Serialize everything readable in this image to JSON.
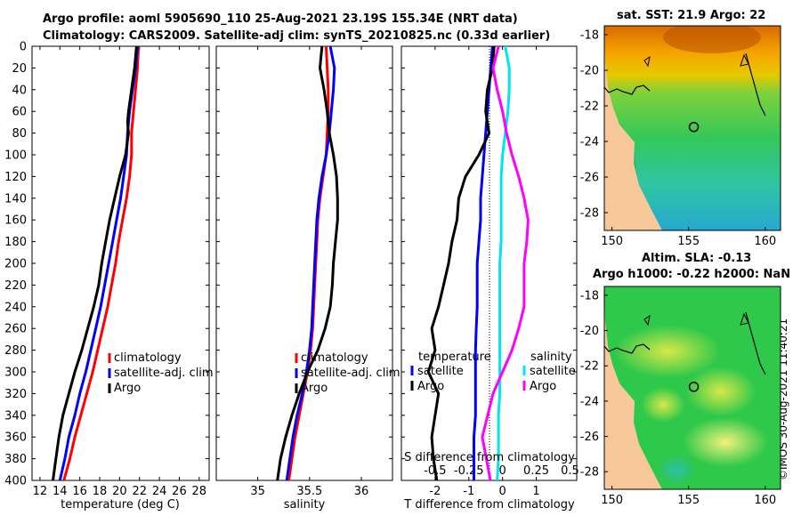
{
  "header": {
    "line1": "Argo profile: aoml 5905690_110 25-Aug-2021 23.19S 155.34E (NRT data)",
    "line2": "Climatology: CARS2009. Satellite-adj clim: synTS_20210825.nc (0.33d earlier)"
  },
  "watermark": "©IMOS 30-Aug-2021 11:40:21",
  "colors": {
    "climatology": "#ff0000",
    "satellite": "#0000ff",
    "argo": "#000000",
    "t_satellite": "#0000ff",
    "s_satellite": "#00e5ee",
    "s_argo": "#ff00ff"
  },
  "chart_data": [
    {
      "type": "line",
      "id": "temperature",
      "xlabel": "temperature (deg C)",
      "ylabel": "",
      "xlim": [
        11.2,
        29
      ],
      "ylim": [
        400,
        0
      ],
      "xticks": [
        12,
        14,
        16,
        18,
        20,
        22,
        24,
        26,
        28
      ],
      "yticks": [
        0,
        20,
        40,
        60,
        80,
        100,
        120,
        140,
        160,
        180,
        200,
        220,
        240,
        260,
        280,
        300,
        320,
        340,
        360,
        380,
        400
      ],
      "legend": {
        "placement": "lower-right",
        "entries": [
          "climatology",
          "satellite-adj. clim",
          "Argo"
        ]
      },
      "series": [
        {
          "name": "climatology",
          "depth": [
            0,
            20,
            40,
            60,
            80,
            100,
            120,
            140,
            160,
            180,
            200,
            220,
            240,
            260,
            280,
            300,
            320,
            340,
            360,
            380,
            400
          ],
          "values": [
            21.9,
            21.8,
            21.6,
            21.4,
            21.2,
            21.2,
            21.0,
            20.7,
            20.3,
            19.9,
            19.6,
            19.2,
            18.8,
            18.3,
            17.8,
            17.3,
            16.7,
            16.1,
            15.5,
            15.0,
            14.4
          ]
        },
        {
          "name": "satellite-adj. clim",
          "depth": [
            0,
            20,
            40,
            60,
            80,
            100,
            120,
            140,
            160,
            180,
            200,
            220,
            240,
            260,
            280,
            300,
            320,
            340,
            360,
            380,
            400
          ],
          "values": [
            21.8,
            21.6,
            21.3,
            21.0,
            20.8,
            20.7,
            20.4,
            20.1,
            19.7,
            19.3,
            18.9,
            18.5,
            18.1,
            17.6,
            17.1,
            16.6,
            16.0,
            15.5,
            14.9,
            14.5,
            14.0
          ]
        },
        {
          "name": "Argo",
          "depth": [
            0,
            20,
            40,
            60,
            70,
            80,
            100,
            120,
            140,
            160,
            180,
            200,
            220,
            240,
            260,
            280,
            300,
            320,
            340,
            360,
            380,
            400
          ],
          "values": [
            21.7,
            21.5,
            21.2,
            20.9,
            20.8,
            20.9,
            20.6,
            20.0,
            19.5,
            19.0,
            18.6,
            18.2,
            17.9,
            17.4,
            16.8,
            16.2,
            15.5,
            14.9,
            14.3,
            13.9,
            13.6,
            13.3
          ]
        }
      ]
    },
    {
      "type": "line",
      "id": "salinity",
      "xlabel": "salinity",
      "ylabel": "",
      "xlim": [
        34.6,
        36.3
      ],
      "ylim": [
        400,
        0
      ],
      "xticks": [
        35,
        35.5,
        36
      ],
      "legend": {
        "placement": "lower-right",
        "entries": [
          "climatology",
          "satellite-adj. clim",
          "Argo"
        ]
      },
      "series": [
        {
          "name": "climatology",
          "depth": [
            0,
            20,
            40,
            60,
            80,
            100,
            120,
            140,
            160,
            180,
            200,
            220,
            240,
            260,
            280,
            300,
            320,
            340,
            360,
            380,
            400
          ],
          "values": [
            35.66,
            35.67,
            35.68,
            35.68,
            35.67,
            35.66,
            35.63,
            35.6,
            35.58,
            35.57,
            35.56,
            35.55,
            35.54,
            35.53,
            35.51,
            35.48,
            35.44,
            35.4,
            35.36,
            35.33,
            35.3
          ]
        },
        {
          "name": "satellite-adj. clim",
          "depth": [
            0,
            20,
            40,
            60,
            80,
            100,
            120,
            140,
            160,
            180,
            200,
            220,
            240,
            260,
            280,
            300,
            320,
            340,
            360,
            380,
            400
          ],
          "values": [
            35.7,
            35.74,
            35.73,
            35.71,
            35.69,
            35.66,
            35.62,
            35.59,
            35.57,
            35.56,
            35.55,
            35.54,
            35.53,
            35.52,
            35.5,
            35.47,
            35.43,
            35.38,
            35.34,
            35.31,
            35.28
          ]
        },
        {
          "name": "Argo",
          "depth": [
            0,
            20,
            40,
            60,
            80,
            100,
            120,
            140,
            160,
            180,
            200,
            220,
            240,
            260,
            280,
            300,
            320,
            340,
            360,
            380,
            400
          ],
          "values": [
            35.62,
            35.6,
            35.64,
            35.67,
            35.69,
            35.73,
            35.76,
            35.77,
            35.77,
            35.75,
            35.73,
            35.72,
            35.7,
            35.65,
            35.58,
            35.48,
            35.4,
            35.33,
            35.27,
            35.22,
            35.19
          ]
        }
      ]
    },
    {
      "type": "line",
      "id": "difference",
      "xlabel": "T difference from climatology",
      "x2label": "S difference from climatology",
      "xlim": [
        -3,
        2.2
      ],
      "ylim": [
        400,
        0
      ],
      "xticks": [
        -2,
        -1,
        0,
        1
      ],
      "x2lim": [
        -0.75,
        0.55
      ],
      "x2ticks": [
        -0.5,
        -0.25,
        0,
        0.25,
        0.5
      ],
      "legend": {
        "placement": "lower",
        "group_titles": [
          "temperature",
          "salinity"
        ],
        "entries": [
          "satellite",
          "Argo",
          "satellite",
          "Argo"
        ]
      },
      "series": [
        {
          "name": "temperature satellite",
          "axis": "T",
          "depth": [
            0,
            20,
            40,
            60,
            80,
            100,
            120,
            140,
            160,
            180,
            200,
            220,
            240,
            260,
            280,
            300,
            320,
            340,
            360,
            380,
            400
          ],
          "values": [
            -0.3,
            -0.35,
            -0.4,
            -0.45,
            -0.5,
            -0.55,
            -0.6,
            -0.65,
            -0.65,
            -0.7,
            -0.75,
            -0.75,
            -0.75,
            -0.78,
            -0.8,
            -0.8,
            -0.8,
            -0.8,
            -0.85,
            -0.85,
            -0.85
          ]
        },
        {
          "name": "temperature Argo",
          "axis": "T",
          "depth": [
            0,
            20,
            40,
            60,
            80,
            100,
            120,
            140,
            160,
            180,
            200,
            220,
            240,
            260,
            280,
            300,
            320,
            340,
            360,
            380,
            400
          ],
          "values": [
            -0.25,
            -0.3,
            -0.45,
            -0.5,
            -0.4,
            -0.7,
            -1.1,
            -1.3,
            -1.35,
            -1.5,
            -1.6,
            -1.75,
            -1.9,
            -2.1,
            -2.0,
            -2.2,
            -1.9,
            -2.0,
            -2.1,
            -2.05,
            -1.95
          ]
        },
        {
          "name": "salinity satellite",
          "axis": "S",
          "depth": [
            0,
            20,
            40,
            60,
            80,
            100,
            120,
            140,
            160,
            180,
            200,
            220,
            240,
            260,
            280,
            300,
            320,
            340,
            360,
            380,
            400
          ],
          "values": [
            0.02,
            0.05,
            0.05,
            0.04,
            0.02,
            0.0,
            -0.01,
            -0.01,
            -0.01,
            -0.01,
            -0.02,
            -0.02,
            -0.02,
            -0.02,
            -0.02,
            -0.02,
            -0.02,
            -0.03,
            -0.03,
            -0.03,
            -0.04
          ]
        },
        {
          "name": "salinity Argo",
          "axis": "S",
          "depth": [
            0,
            20,
            40,
            60,
            80,
            100,
            120,
            140,
            160,
            180,
            200,
            220,
            240,
            260,
            280,
            300,
            320,
            340,
            360,
            380,
            400
          ],
          "values": [
            -0.03,
            -0.07,
            -0.04,
            0.0,
            0.03,
            0.07,
            0.12,
            0.16,
            0.19,
            0.18,
            0.16,
            0.16,
            0.16,
            0.12,
            0.07,
            0.0,
            -0.07,
            -0.11,
            -0.15,
            -0.12,
            -0.09
          ]
        }
      ]
    },
    {
      "type": "heatmap",
      "id": "sst_map",
      "title": "sat. SST: 21.9 Argo: 22",
      "xticks": [
        150,
        155,
        160
      ],
      "yticks": [
        -18,
        -20,
        -22,
        -24,
        -26,
        -28
      ],
      "xlim": [
        149.5,
        161
      ],
      "ylim": [
        -29,
        -17.5
      ],
      "argo_position": {
        "lon": 155.34,
        "lat": -23.19
      }
    },
    {
      "type": "heatmap",
      "id": "sla_map",
      "title_line1": "Altim. SLA: -0.13",
      "title_line2": "Argo h1000: -0.22 h2000: NaN",
      "xticks": [
        150,
        155,
        160
      ],
      "yticks": [
        -18,
        -20,
        -22,
        -24,
        -26,
        -28
      ],
      "xlim": [
        149.5,
        161
      ],
      "ylim": [
        -29,
        -17.5
      ],
      "argo_position": {
        "lon": 155.34,
        "lat": -23.19
      }
    }
  ]
}
